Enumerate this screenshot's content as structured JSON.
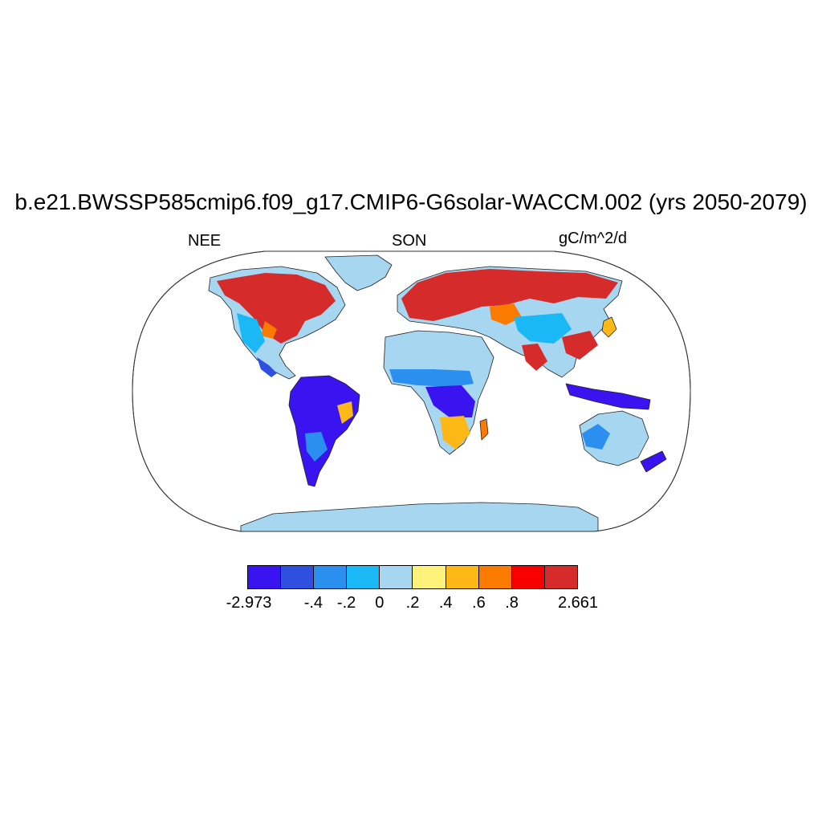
{
  "title": "b.e21.BWSSP585cmip6.f09_g17.CMIP6-G6solar-WACCM.002 (yrs 2050-2079)",
  "left_label": "NEE",
  "center_label": "SON",
  "right_label": "gC/m^2/d",
  "projection": "Robinson",
  "colorbar": {
    "colors": [
      "#3a14f0",
      "#2e4fe0",
      "#2b8ff0",
      "#1ab8f5",
      "#a7d6f1",
      "#fff27a",
      "#fbb817",
      "#fb7a00",
      "#f80000",
      "#d62b2b"
    ],
    "labels": [
      "-2.973",
      "-.4",
      "-.2",
      "0",
      ".2",
      ".4",
      ".6",
      ".8",
      "2.661"
    ]
  }
}
